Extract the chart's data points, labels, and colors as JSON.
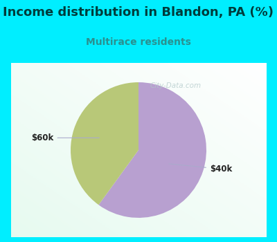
{
  "title": "Income distribution in Blandon, PA (%)",
  "subtitle": "Multirace residents",
  "title_color": "#003c3c",
  "subtitle_color": "#2a9090",
  "background_outer": "#00eeff",
  "slices": [
    {
      "label": "$40k",
      "value": 60,
      "color": "#b8a0d0"
    },
    {
      "label": "$60k",
      "value": 40,
      "color": "#b8c878"
    }
  ],
  "watermark": "City-Data.com",
  "label_color": "#222222",
  "title_fontsize": 13,
  "subtitle_fontsize": 10,
  "label_fontsize": 8.5
}
